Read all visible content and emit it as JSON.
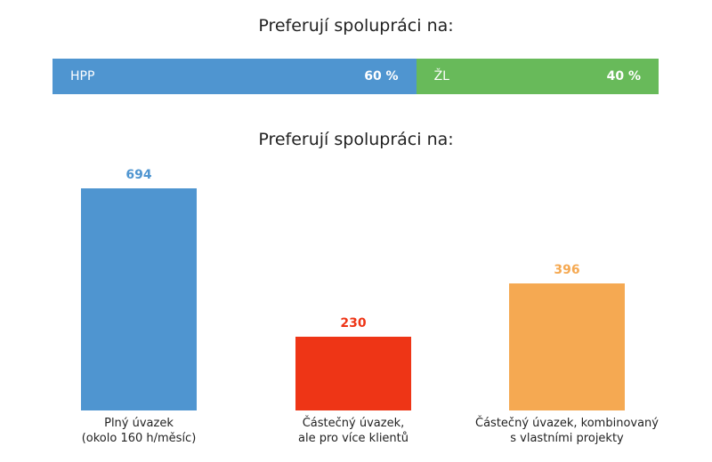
{
  "chart_data": [
    {
      "type": "bar",
      "orientation": "horizontal-stacked",
      "title": "Preferují spolupráci na:",
      "segments": [
        {
          "label": "HPP",
          "value": 60,
          "value_label": "60 %",
          "color": "#4f95d0"
        },
        {
          "label": "ŽL",
          "value": 40,
          "value_label": "40 %",
          "color": "#68ba5a"
        }
      ]
    },
    {
      "type": "bar",
      "title": "Preferují spolupráci na:",
      "categories": [
        [
          "Plný úvazek",
          "(okolo 160 h/měsíc)"
        ],
        [
          "Částečný úvazek,",
          "ale pro více klientů"
        ],
        [
          "Částečný úvazek, kombinovaný",
          "s vlastními projekty"
        ]
      ],
      "values": [
        694,
        230,
        396
      ],
      "colors": [
        "#4f95d0",
        "#ee3516",
        "#f5a952"
      ],
      "ylim": [
        0,
        694
      ]
    }
  ]
}
